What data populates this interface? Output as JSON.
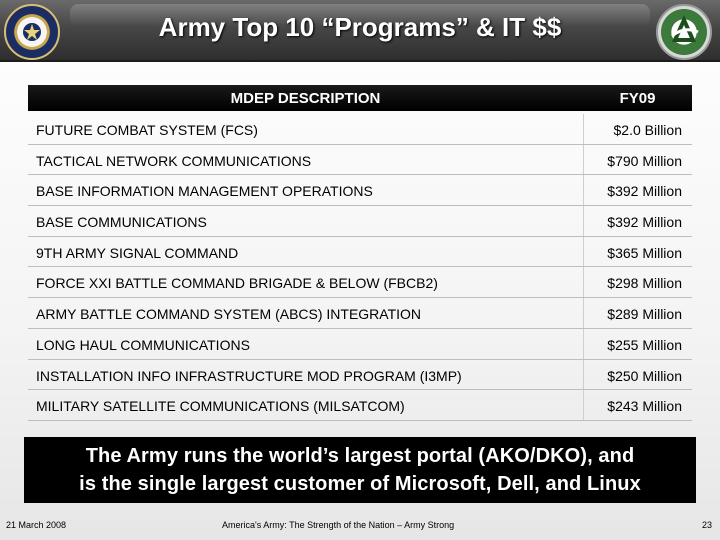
{
  "header": {
    "title": "Army Top 10 “Programs” & IT $$"
  },
  "table": {
    "col_description": "MDEP DESCRIPTION",
    "col_fy": "FY09",
    "rows": [
      {
        "description": "FUTURE COMBAT SYSTEM (FCS)",
        "amount": "$2.0 Billion"
      },
      {
        "description": "TACTICAL NETWORK COMMUNICATIONS",
        "amount": "$790 Million"
      },
      {
        "description": "BASE INFORMATION MANAGEMENT OPERATIONS",
        "amount": "$392 Million"
      },
      {
        "description": "BASE COMMUNICATIONS",
        "amount": "$392 Million"
      },
      {
        "description": "9TH ARMY SIGNAL COMMAND",
        "amount": "$365 Million"
      },
      {
        "description": "FORCE XXI BATTLE COMMAND BRIGADE & BELOW (FBCB2)",
        "amount": "$298 Million"
      },
      {
        "description": "ARMY BATTLE COMMAND SYSTEM (ABCS)  INTEGRATION",
        "amount": "$289 Million"
      },
      {
        "description": "LONG HAUL COMMUNICATIONS",
        "amount": "$255 Million"
      },
      {
        "description": "INSTALLATION INFO INFRASTRUCTURE MOD PROGRAM (I3MP)",
        "amount": "$250 Million"
      },
      {
        "description": "MILITARY SATELLITE COMMUNICATIONS (MILSATCOM)",
        "amount": "$243 Million"
      }
    ]
  },
  "banner": {
    "line1": "The Army runs the world’s largest portal (AKO/DKO), and",
    "line2": "is the single largest customer of Microsoft, Dell, and Linux"
  },
  "footer": {
    "date": "21 March 2008",
    "tagline": "America's Army: The Strength of the Nation – Army Strong",
    "page": "23"
  }
}
